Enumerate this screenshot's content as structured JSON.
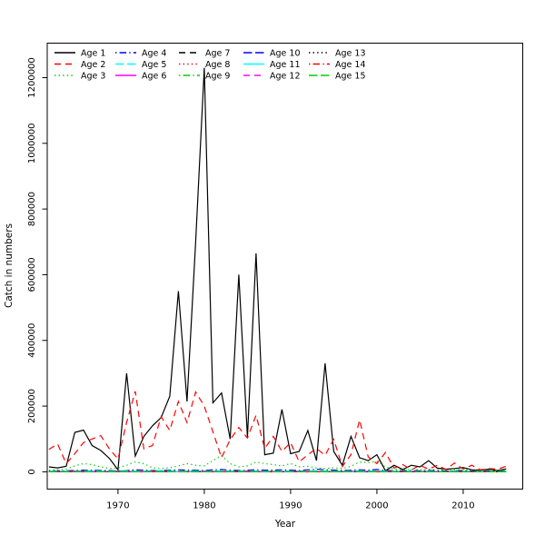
{
  "colors": {
    "background": "#FFFFFF",
    "foreground": "#000000"
  },
  "chart_data": {
    "type": "line",
    "title": "",
    "xlabel": "Year",
    "ylabel": "Catch in numbers",
    "grid": false,
    "legend_position": "top-left",
    "legend_columns": 5,
    "xlim": [
      1961.8,
      2016.9
    ],
    "ylim": [
      -52500,
      1305000
    ],
    "x_ticks": [
      1970,
      1980,
      1990,
      2000,
      2010
    ],
    "x_tick_labels": [
      "1970",
      "1980",
      "1990",
      "2000",
      "2010"
    ],
    "y_ticks": [
      0,
      200000,
      400000,
      600000,
      800000,
      1000000,
      1200000
    ],
    "y_tick_labels": [
      "0",
      "200000",
      "400000",
      "600000",
      "800000",
      "1000000",
      "1200000"
    ],
    "x": [
      1962,
      1963,
      1964,
      1965,
      1966,
      1967,
      1968,
      1969,
      1970,
      1971,
      1972,
      1973,
      1974,
      1975,
      1976,
      1977,
      1978,
      1979,
      1980,
      1981,
      1982,
      1983,
      1984,
      1985,
      1986,
      1987,
      1988,
      1989,
      1990,
      1991,
      1992,
      1993,
      1994,
      1995,
      1996,
      1997,
      1998,
      1999,
      2000,
      2001,
      2002,
      2003,
      2004,
      2005,
      2006,
      2007,
      2008,
      2009,
      2010,
      2011,
      2012,
      2013,
      2014,
      2015
    ],
    "series": [
      {
        "name": "Age 1",
        "color": "#000000",
        "dash": "solid",
        "values": [
          15000,
          12000,
          17000,
          120000,
          127000,
          80000,
          65000,
          41000,
          6000,
          300000,
          48000,
          108000,
          140000,
          165000,
          230000,
          550000,
          214000,
          700000,
          1230000,
          210000,
          240000,
          100000,
          600000,
          105000,
          665000,
          52000,
          57000,
          190000,
          55000,
          62000,
          126000,
          34000,
          330000,
          62000,
          20000,
          108000,
          43000,
          34000,
          52000,
          3000,
          20000,
          7000,
          20000,
          15000,
          34000,
          11000,
          8000,
          10000,
          13000,
          6000,
          5000,
          8000,
          4000,
          9000
        ]
      },
      {
        "name": "Age 2",
        "color": "#FF0000",
        "dash": "dashed",
        "values": [
          68000,
          85000,
          25000,
          55000,
          89000,
          100000,
          110000,
          70000,
          39000,
          150000,
          245000,
          70000,
          80000,
          168000,
          126000,
          214000,
          150000,
          243000,
          200000,
          122000,
          43000,
          98000,
          135000,
          103000,
          172000,
          71000,
          108000,
          62000,
          89000,
          30000,
          52000,
          71000,
          50000,
          99000,
          16000,
          52000,
          158000,
          45000,
          25000,
          59000,
          11000,
          22000,
          6000,
          20000,
          8000,
          20000,
          7000,
          27000,
          8000,
          20000,
          6000,
          10000,
          8000,
          17000
        ]
      },
      {
        "name": "Age 3",
        "color": "#00CD00",
        "dash": "dotted",
        "values": [
          5000,
          6000,
          8000,
          18000,
          25000,
          22000,
          15000,
          10000,
          12000,
          20000,
          30000,
          25000,
          12000,
          10000,
          12000,
          18000,
          25000,
          20000,
          18000,
          34000,
          50000,
          25000,
          15000,
          18000,
          30000,
          25000,
          22000,
          18000,
          25000,
          15000,
          17000,
          12000,
          10000,
          12000,
          10000,
          17000,
          30000,
          28000,
          32000,
          15000,
          8000,
          6000,
          8000,
          6000,
          8000,
          6000,
          5000,
          6000,
          8000,
          5000,
          4000,
          5000,
          4000,
          6000
        ]
      },
      {
        "name": "Age 4",
        "color": "#0000FF",
        "dash": "dotdash",
        "values": [
          3000,
          3000,
          3000,
          4000,
          5000,
          5000,
          4000,
          4000,
          3000,
          4000,
          6000,
          5000,
          4000,
          4000,
          5000,
          6000,
          5000,
          5000,
          4000,
          6000,
          7000,
          5000,
          4000,
          5000,
          6000,
          5000,
          5000,
          6000,
          5000,
          4000,
          6000,
          8000,
          6000,
          5000,
          4000,
          5000,
          6000,
          5000,
          7000,
          4000,
          3000,
          3000,
          4000,
          3000,
          4000,
          3000,
          3000,
          3000,
          4000,
          3000,
          2000,
          3000,
          2000,
          3000
        ]
      },
      {
        "name": "Age 5",
        "color": "#00FFFF",
        "dash": "longdash",
        "values": [
          2000,
          2000,
          2000,
          2000,
          3000,
          3000,
          2000,
          2000,
          4000,
          3000,
          2000,
          2000,
          3000,
          4000,
          3000,
          2000,
          2000,
          3000,
          2000,
          3000,
          3000,
          2000,
          2000,
          3000,
          3000,
          2000,
          2000,
          3000,
          2000,
          2000,
          3000,
          3000,
          2000,
          2000,
          2000,
          3000,
          3000,
          2000,
          3000,
          2000,
          2000,
          1000,
          2000,
          1000,
          2000,
          1000,
          1000,
          2000,
          2000,
          1000,
          1000,
          1000,
          1000,
          2000
        ]
      },
      {
        "name": "Age 6",
        "color": "#FF00FF",
        "dash": "solid",
        "values": [
          1000,
          1000,
          1000,
          2000,
          1000,
          1000,
          1000,
          1000,
          2000,
          1000,
          1000,
          1000,
          2000,
          1000,
          1000,
          1000,
          1000,
          1000,
          2000,
          1000,
          1000,
          1000,
          1000,
          2000,
          1000,
          1000,
          1000,
          1000,
          1000,
          2000,
          1000,
          1000,
          1000,
          1000,
          1000,
          2000,
          1000,
          1000,
          1000,
          1000,
          1000,
          1000,
          1000,
          1000,
          1000,
          1000,
          1000,
          1000,
          1000,
          1000,
          1000,
          1000,
          1000,
          1000
        ]
      },
      {
        "name": "Age 7",
        "color": "#000000",
        "dash": "dashed",
        "values": [
          700,
          900,
          700,
          900,
          700,
          900,
          700,
          900,
          700,
          900,
          700,
          900,
          700,
          900,
          700,
          900,
          700,
          900,
          700,
          900,
          700,
          900,
          700,
          900,
          700,
          900,
          700,
          900,
          700,
          900,
          700,
          900,
          700,
          900,
          700,
          900,
          700,
          900,
          700,
          900,
          700,
          900,
          700,
          900,
          700,
          900,
          700,
          900,
          700,
          900,
          700,
          900,
          700,
          900
        ]
      },
      {
        "name": "Age 8",
        "color": "#FF0000",
        "dash": "dotted",
        "values": [
          500,
          700,
          500,
          700,
          500,
          700,
          500,
          700,
          500,
          700,
          500,
          700,
          500,
          700,
          500,
          700,
          500,
          700,
          500,
          700,
          500,
          700,
          500,
          700,
          500,
          700,
          500,
          700,
          500,
          700,
          500,
          700,
          500,
          700,
          500,
          700,
          500,
          700,
          500,
          700,
          500,
          700,
          500,
          700,
          500,
          700,
          500,
          700,
          500,
          700,
          500,
          700,
          500,
          700
        ]
      },
      {
        "name": "Age 9",
        "color": "#00CD00",
        "dash": "dotdash",
        "values": [
          400,
          600,
          400,
          600,
          400,
          600,
          400,
          600,
          400,
          600,
          400,
          600,
          400,
          600,
          400,
          600,
          400,
          600,
          400,
          600,
          400,
          600,
          400,
          600,
          400,
          600,
          400,
          600,
          400,
          600,
          400,
          600,
          400,
          600,
          400,
          600,
          400,
          600,
          400,
          600,
          400,
          600,
          400,
          600,
          400,
          600,
          400,
          600,
          400,
          600,
          400,
          600,
          400,
          600
        ]
      },
      {
        "name": "Age 10",
        "color": "#0000FF",
        "dash": "longdash",
        "values": [
          300,
          500,
          300,
          500,
          300,
          500,
          300,
          500,
          300,
          500,
          300,
          500,
          300,
          500,
          300,
          500,
          300,
          500,
          300,
          500,
          300,
          500,
          300,
          500,
          300,
          500,
          300,
          500,
          300,
          500,
          300,
          500,
          300,
          500,
          300,
          500,
          300,
          500,
          300,
          500,
          300,
          500,
          300,
          500,
          300,
          500,
          300,
          500,
          300,
          500,
          300,
          500,
          300,
          500
        ]
      },
      {
        "name": "Age 11",
        "color": "#00FFFF",
        "dash": "solid",
        "values": [
          300,
          400,
          300,
          400,
          300,
          400,
          300,
          400,
          300,
          400,
          300,
          400,
          300,
          400,
          300,
          400,
          300,
          400,
          300,
          400,
          300,
          400,
          300,
          400,
          300,
          400,
          300,
          400,
          300,
          400,
          300,
          400,
          300,
          400,
          300,
          400,
          300,
          400,
          300,
          400,
          300,
          400,
          300,
          400,
          300,
          400,
          300,
          400,
          300,
          400,
          300,
          400,
          300,
          400
        ]
      },
      {
        "name": "Age 12",
        "color": "#FF00FF",
        "dash": "dashed",
        "values": [
          200,
          300,
          200,
          300,
          200,
          300,
          200,
          300,
          200,
          300,
          200,
          300,
          200,
          300,
          200,
          300,
          200,
          300,
          200,
          300,
          200,
          300,
          200,
          300,
          200,
          300,
          200,
          300,
          200,
          300,
          200,
          300,
          200,
          300,
          200,
          300,
          200,
          300,
          200,
          300,
          200,
          300,
          200,
          300,
          200,
          300,
          200,
          300,
          200,
          300,
          200,
          300,
          200,
          300
        ]
      },
      {
        "name": "Age 13",
        "color": "#000000",
        "dash": "dotted",
        "values": [
          250,
          350,
          250,
          350,
          250,
          350,
          250,
          350,
          250,
          350,
          250,
          350,
          250,
          350,
          250,
          350,
          250,
          350,
          250,
          350,
          250,
          350,
          250,
          350,
          250,
          350,
          250,
          350,
          250,
          350,
          250,
          350,
          250,
          350,
          250,
          350,
          250,
          350,
          250,
          350,
          250,
          350,
          250,
          350,
          250,
          350,
          250,
          350,
          250,
          350,
          250,
          350,
          250,
          350
        ]
      },
      {
        "name": "Age 14",
        "color": "#FF0000",
        "dash": "dotdash",
        "values": [
          150,
          250,
          150,
          250,
          150,
          250,
          150,
          250,
          150,
          250,
          150,
          250,
          150,
          250,
          150,
          250,
          150,
          250,
          150,
          250,
          150,
          250,
          150,
          250,
          150,
          250,
          150,
          250,
          150,
          250,
          150,
          250,
          150,
          250,
          150,
          250,
          150,
          250,
          150,
          250,
          150,
          250,
          150,
          250,
          150,
          250,
          150,
          250,
          150,
          250,
          150,
          250,
          150,
          250
        ]
      },
      {
        "name": "Age 15",
        "color": "#00CD00",
        "dash": "longdash",
        "values": [
          100,
          200,
          100,
          200,
          100,
          200,
          100,
          200,
          100,
          200,
          100,
          200,
          100,
          200,
          100,
          200,
          100,
          200,
          100,
          200,
          100,
          200,
          100,
          200,
          100,
          200,
          100,
          200,
          100,
          200,
          100,
          200,
          100,
          200,
          100,
          200,
          100,
          200,
          100,
          200,
          100,
          200,
          100,
          200,
          100,
          200,
          100,
          200,
          100,
          200,
          100,
          200,
          100,
          200
        ]
      }
    ]
  }
}
